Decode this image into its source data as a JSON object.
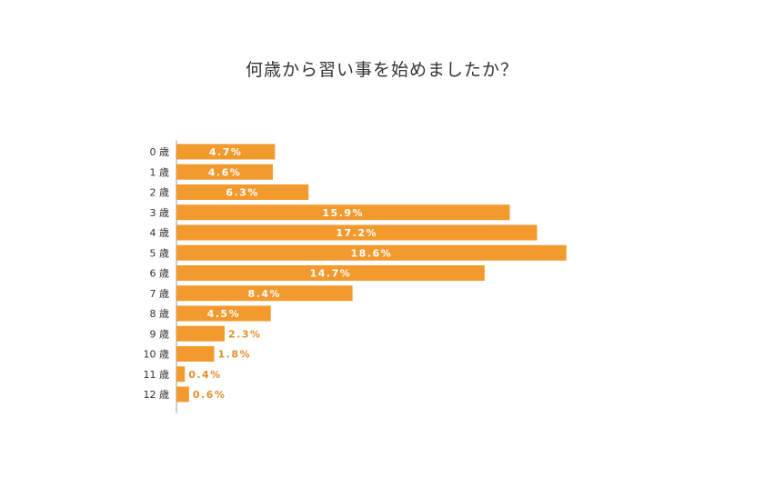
{
  "chart_data": {
    "type": "bar",
    "orientation": "horizontal",
    "title": "何歳から習い事を始めましたか？",
    "categories": [
      "0 歳",
      "1 歳",
      "2 歳",
      "3 歳",
      "4 歳",
      "5 歳",
      "6 歳",
      "7 歳",
      "8 歳",
      "9 歳",
      "10 歳",
      "11 歳",
      "12 歳"
    ],
    "values": [
      4.7,
      4.6,
      6.3,
      15.9,
      17.2,
      18.6,
      14.7,
      8.4,
      4.5,
      2.3,
      1.8,
      0.4,
      0.6
    ],
    "value_labels": [
      "4.7%",
      "4.6%",
      "6.3%",
      "15.9%",
      "17.2%",
      "18.6%",
      "14.7%",
      "8.4%",
      "4.5%",
      "2.3%",
      "1.8%",
      "0.4%",
      "0.6%"
    ],
    "xlabel": "",
    "ylabel": "",
    "grid": false,
    "legend": false,
    "colors": {
      "bar": "#f39a2e",
      "label_inside": "#ffffff",
      "label_outside": "#e0902a",
      "axis": "#999999",
      "text": "#333333"
    }
  }
}
